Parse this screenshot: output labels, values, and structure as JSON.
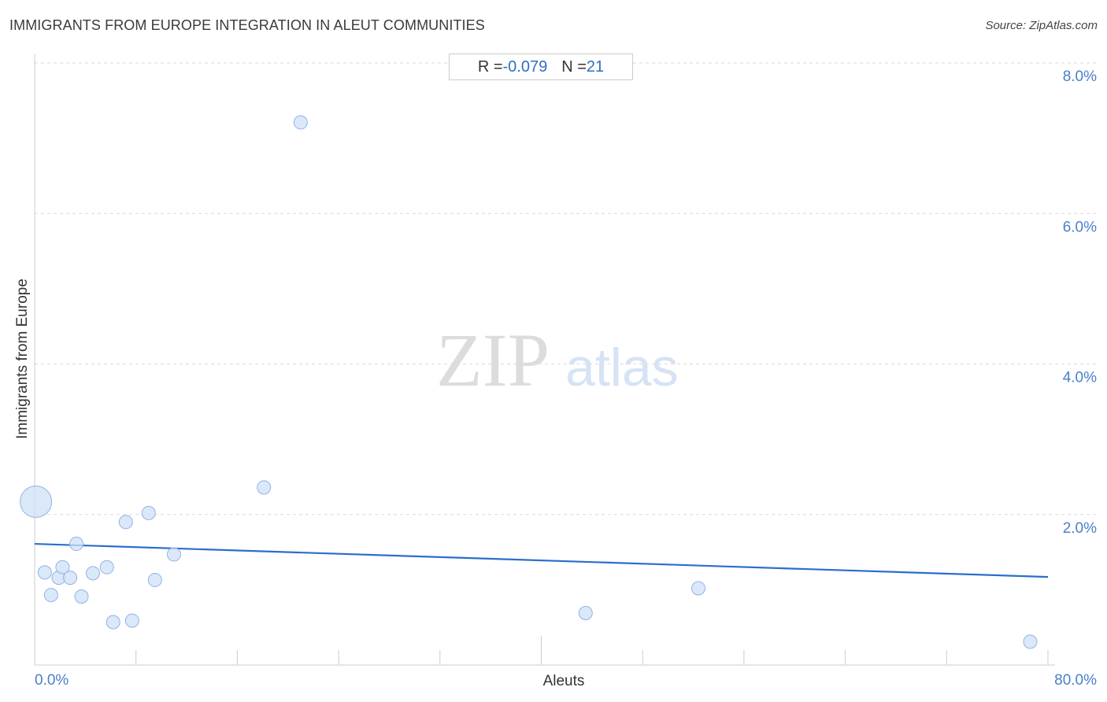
{
  "title": "IMMIGRANTS FROM EUROPE INTEGRATION IN ALEUT COMMUNITIES",
  "source": "Source: ZipAtlas.com",
  "stats": {
    "r_label": "R = ",
    "r_value": "-0.079",
    "n_label": "N = ",
    "n_value": "21"
  },
  "watermark": {
    "zip": "ZIP",
    "atlas": "atlas"
  },
  "colors": {
    "point_fill": "#cfe0f7",
    "point_stroke": "#8fb3e3",
    "trend": "#2a6fcb",
    "tick_label": "#4a7fc9"
  },
  "chart_data": {
    "type": "scatter",
    "title": "IMMIGRANTS FROM EUROPE INTEGRATION IN ALEUT COMMUNITIES",
    "xlabel": "Aleuts",
    "ylabel": "Immigrants from Europe",
    "xlim": [
      0,
      80
    ],
    "ylim": [
      0,
      8
    ],
    "x_tick_labels": [
      "0.0%",
      "80.0%"
    ],
    "y_ticks": [
      2,
      4,
      6,
      8
    ],
    "y_tick_labels": [
      "2.0%",
      "4.0%",
      "6.0%",
      "8.0%"
    ],
    "grid": "horizontal dashed",
    "points": [
      {
        "x": 0.1,
        "y": 2.17,
        "big": true
      },
      {
        "x": 0.8,
        "y": 1.23
      },
      {
        "x": 1.3,
        "y": 0.93
      },
      {
        "x": 1.9,
        "y": 1.16
      },
      {
        "x": 2.2,
        "y": 1.3
      },
      {
        "x": 2.8,
        "y": 1.16
      },
      {
        "x": 3.3,
        "y": 1.61
      },
      {
        "x": 3.7,
        "y": 0.91
      },
      {
        "x": 4.6,
        "y": 1.22
      },
      {
        "x": 5.7,
        "y": 1.3
      },
      {
        "x": 6.2,
        "y": 0.57
      },
      {
        "x": 7.2,
        "y": 1.9
      },
      {
        "x": 7.7,
        "y": 0.59
      },
      {
        "x": 9.0,
        "y": 2.02
      },
      {
        "x": 9.5,
        "y": 1.13
      },
      {
        "x": 11.0,
        "y": 1.47
      },
      {
        "x": 18.1,
        "y": 2.36
      },
      {
        "x": 21.0,
        "y": 7.21
      },
      {
        "x": 43.5,
        "y": 0.69
      },
      {
        "x": 52.4,
        "y": 1.02
      },
      {
        "x": 78.6,
        "y": 0.31
      }
    ],
    "trendline": {
      "x": [
        0,
        80
      ],
      "y": [
        1.61,
        1.17
      ]
    }
  }
}
